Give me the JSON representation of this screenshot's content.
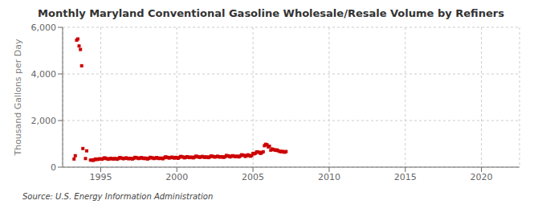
{
  "chart_data": {
    "type": "scatter",
    "title": "Monthly Maryland Conventional Gasoline Wholesale/Resale Volume by Refiners",
    "ylabel": "Thousand Gallons per Day",
    "annotations": [
      "Source: U.S. Energy Information Administration"
    ],
    "color": "#cc0000",
    "marker": "square",
    "grid": true,
    "xlim": [
      1992.5,
      2022.5
    ],
    "xticks": [
      1995,
      2000,
      2005,
      2010,
      2015,
      2020
    ],
    "ylim": [
      0,
      6000
    ],
    "yticks": [
      0,
      {
        "value": 2000,
        "label": "2,000"
      },
      {
        "value": 4000,
        "label": "4,000"
      },
      {
        "value": 6000,
        "label": "6,000"
      }
    ],
    "x": [
      1993.25,
      1993.33,
      1993.42,
      1993.5,
      1993.58,
      1993.67,
      1993.75,
      1993.83,
      1994.0,
      1994.08,
      1994.33,
      1994.42,
      1994.5,
      1994.58,
      1994.67,
      1994.75,
      1994.83,
      1994.92,
      1995.0,
      1995.08,
      1995.17,
      1995.25,
      1995.33,
      1995.42,
      1995.5,
      1995.58,
      1995.67,
      1995.75,
      1995.83,
      1995.92,
      1996.0,
      1996.08,
      1996.17,
      1996.25,
      1996.33,
      1996.42,
      1996.5,
      1996.58,
      1996.67,
      1996.75,
      1996.83,
      1996.92,
      1997.0,
      1997.08,
      1997.17,
      1997.25,
      1997.33,
      1997.42,
      1997.5,
      1997.58,
      1997.67,
      1997.75,
      1997.83,
      1997.92,
      1998.0,
      1998.08,
      1998.17,
      1998.25,
      1998.33,
      1998.42,
      1998.5,
      1998.58,
      1998.67,
      1998.75,
      1998.83,
      1998.92,
      1999.0,
      1999.08,
      1999.17,
      1999.25,
      1999.33,
      1999.42,
      1999.5,
      1999.58,
      1999.67,
      1999.75,
      1999.83,
      1999.92,
      2000.0,
      2000.08,
      2000.17,
      2000.25,
      2000.33,
      2000.42,
      2000.5,
      2000.58,
      2000.67,
      2000.75,
      2000.83,
      2000.92,
      2001.0,
      2001.08,
      2001.17,
      2001.25,
      2001.33,
      2001.42,
      2001.5,
      2001.58,
      2001.67,
      2001.75,
      2001.83,
      2001.92,
      2002.0,
      2002.08,
      2002.17,
      2002.25,
      2002.33,
      2002.42,
      2002.5,
      2002.58,
      2002.67,
      2002.75,
      2002.83,
      2002.92,
      2003.0,
      2003.08,
      2003.17,
      2003.25,
      2003.33,
      2003.42,
      2003.5,
      2003.58,
      2003.67,
      2003.75,
      2003.83,
      2003.92,
      2004.0,
      2004.08,
      2004.17,
      2004.25,
      2004.33,
      2004.42,
      2004.5,
      2004.58,
      2004.67,
      2004.75,
      2004.83,
      2004.92,
      2005.0,
      2005.08,
      2005.17,
      2005.25,
      2005.33,
      2005.42,
      2005.5,
      2005.58,
      2005.67,
      2005.75,
      2005.83,
      2005.92,
      2006.0,
      2006.08,
      2006.17,
      2006.25,
      2006.33,
      2006.42,
      2006.5,
      2006.58,
      2006.67,
      2006.75,
      2006.83,
      2006.92,
      2007.0,
      2007.08,
      2007.17
    ],
    "values": [
      350,
      490,
      5450,
      5500,
      5200,
      5050,
      4350,
      800,
      370,
      700,
      300,
      310,
      290,
      320,
      350,
      330,
      340,
      360,
      350,
      340,
      370,
      400,
      380,
      360,
      340,
      360,
      380,
      360,
      350,
      370,
      360,
      340,
      370,
      410,
      400,
      380,
      360,
      380,
      400,
      380,
      360,
      380,
      370,
      350,
      380,
      420,
      410,
      390,
      370,
      390,
      410,
      390,
      370,
      390,
      370,
      350,
      380,
      420,
      410,
      390,
      370,
      390,
      410,
      390,
      370,
      390,
      380,
      360,
      400,
      440,
      430,
      410,
      390,
      410,
      430,
      410,
      390,
      420,
      400,
      380,
      420,
      460,
      450,
      430,
      400,
      420,
      450,
      430,
      410,
      430,
      420,
      400,
      430,
      470,
      460,
      440,
      420,
      440,
      460,
      440,
      420,
      440,
      430,
      410,
      440,
      480,
      470,
      450,
      430,
      450,
      470,
      450,
      430,
      450,
      440,
      420,
      450,
      500,
      490,
      470,
      440,
      470,
      490,
      470,
      450,
      470,
      460,
      440,
      480,
      530,
      520,
      500,
      460,
      500,
      530,
      500,
      470,
      500,
      590,
      570,
      600,
      660,
      650,
      630,
      590,
      630,
      660,
      920,
      980,
      960,
      870,
      900,
      730,
      780,
      760,
      740,
      720,
      740,
      700,
      680,
      660,
      680,
      660,
      640,
      670
    ]
  }
}
